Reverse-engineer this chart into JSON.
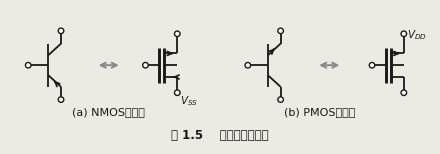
{
  "title": "图 1.5    两种符号的互换",
  "subtitle_a": "(a) NMOS晶体管",
  "subtitle_b": "(b) PMOS晶体管",
  "label_vss": "$V_{SS}$",
  "label_vdd": "$V_{DD}$",
  "bg_color": "#ede9e3",
  "line_color": "#1a1a1a",
  "arrow_color": "#888888",
  "title_fontsize": 8.5,
  "sub_fontsize": 8.0
}
